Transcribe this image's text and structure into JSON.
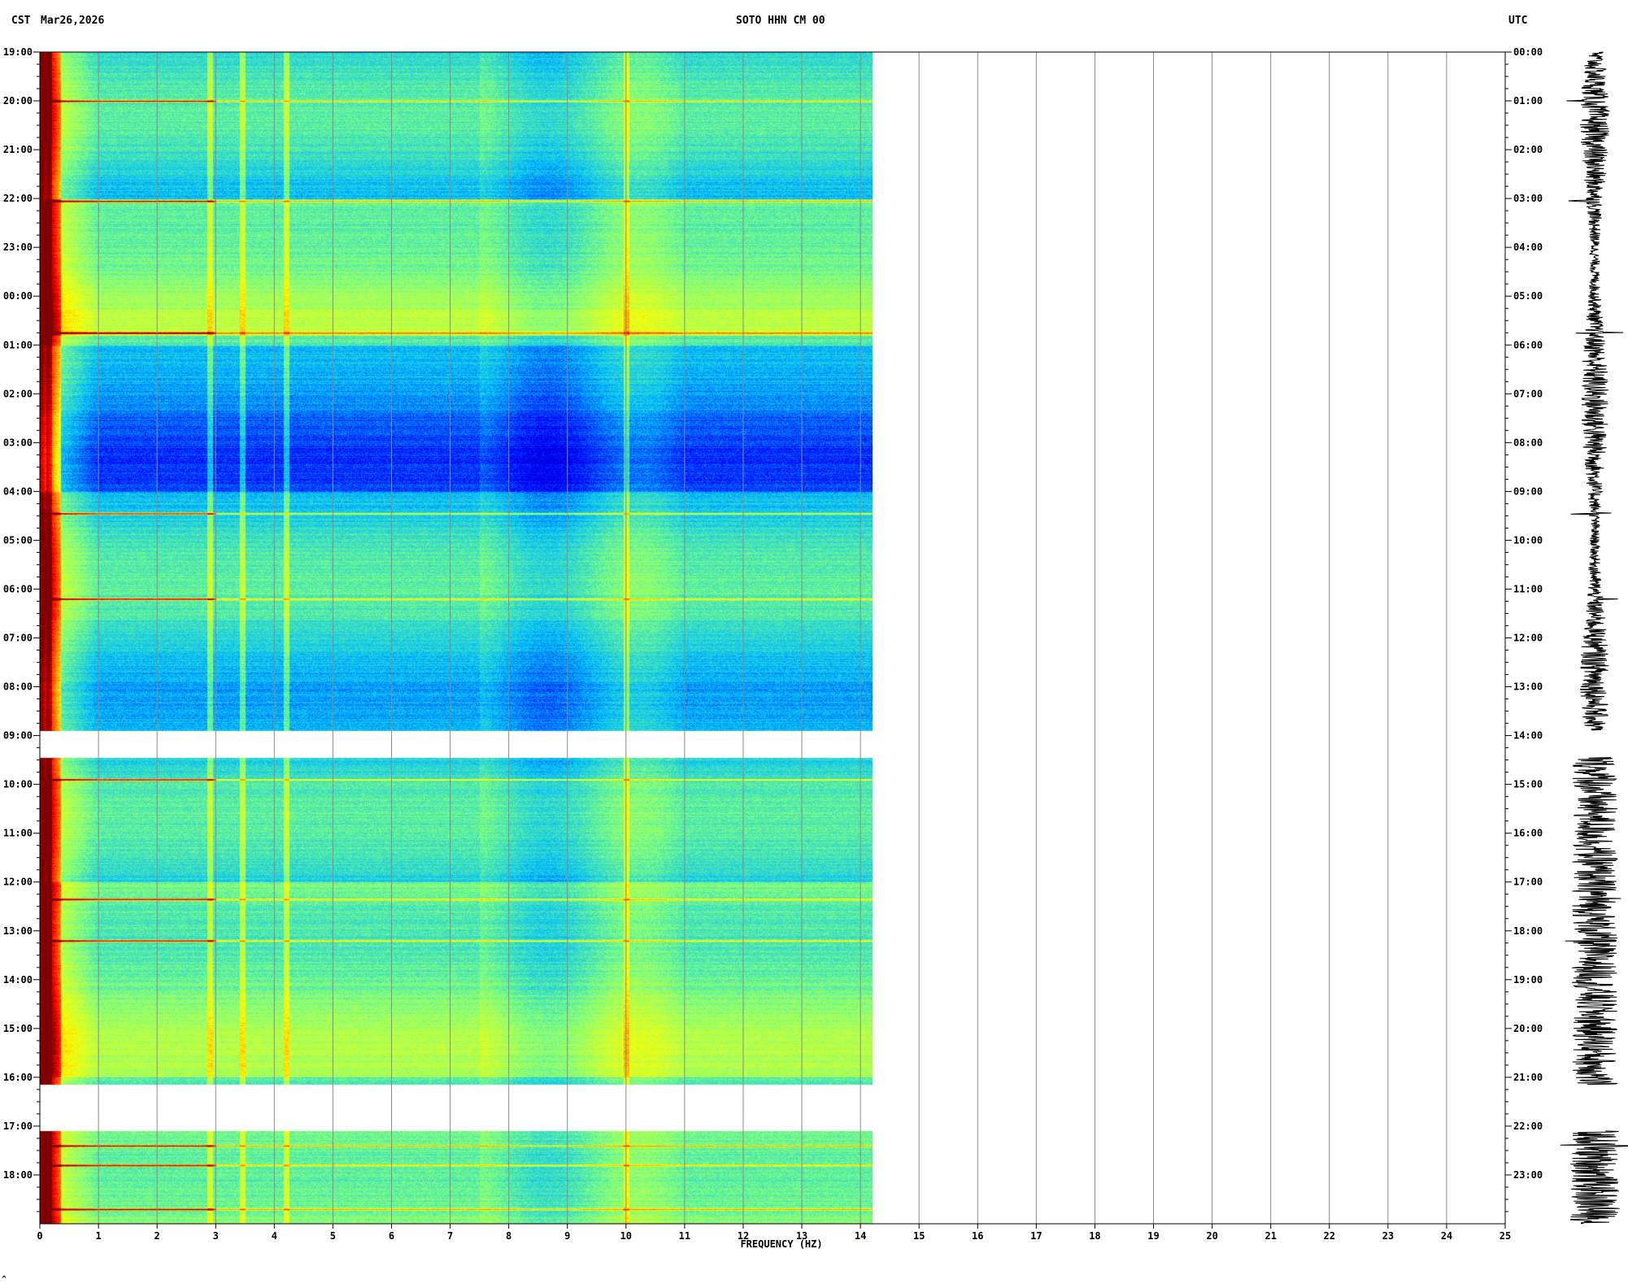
{
  "header": {
    "left_tz": "CST",
    "date": "Mar26,2026",
    "station": "SOTO HHN CM 00",
    "right_tz": "UTC"
  },
  "footer": {
    "corner_mark": "^"
  },
  "chart_data": {
    "type": "heatmap",
    "title": "SOTO HHN CM 00",
    "xlabel": "FREQUENCY (HZ)",
    "xlim": [
      0,
      25
    ],
    "x_ticks": [
      "0",
      "1",
      "2",
      "3",
      "4",
      "5",
      "6",
      "7",
      "8",
      "9",
      "10",
      "11",
      "12",
      "13",
      "14",
      "15",
      "16",
      "17",
      "18",
      "19",
      "20",
      "21",
      "22",
      "23",
      "24",
      "25"
    ],
    "data_max_frequency_hz": 14.2,
    "left_time_labels": [
      "19:00",
      "20:00",
      "21:00",
      "22:00",
      "23:00",
      "00:00",
      "01:00",
      "02:00",
      "03:00",
      "04:00",
      "05:00",
      "06:00",
      "07:00",
      "08:00",
      "09:00",
      "10:00",
      "11:00",
      "12:00",
      "13:00",
      "14:00",
      "15:00",
      "16:00",
      "17:00",
      "18:00"
    ],
    "right_time_labels": [
      "00:00",
      "01:00",
      "02:00",
      "03:00",
      "04:00",
      "05:00",
      "06:00",
      "07:00",
      "08:00",
      "09:00",
      "10:00",
      "11:00",
      "12:00",
      "13:00",
      "14:00",
      "15:00",
      "16:00",
      "17:00",
      "18:00",
      "19:00",
      "20:00",
      "21:00",
      "22:00",
      "23:00"
    ],
    "data_segments_utc_hours": [
      [
        0,
        13.9
      ],
      [
        14.45,
        21.15
      ],
      [
        22.1,
        24.0
      ]
    ],
    "colormap": [
      "#00007f",
      "#0000ff",
      "#00bfff",
      "#7fff7f",
      "#ffff00",
      "#ff7f00",
      "#ff0000",
      "#7f0000"
    ],
    "persistent_lines_hz": [
      0.15,
      2.9,
      3.45,
      4.2,
      10.0
    ],
    "events_utc_hours": [
      1.0,
      3.05,
      5.75,
      9.45,
      11.2,
      14.9,
      17.35,
      18.2,
      22.4,
      22.8,
      23.7
    ]
  }
}
